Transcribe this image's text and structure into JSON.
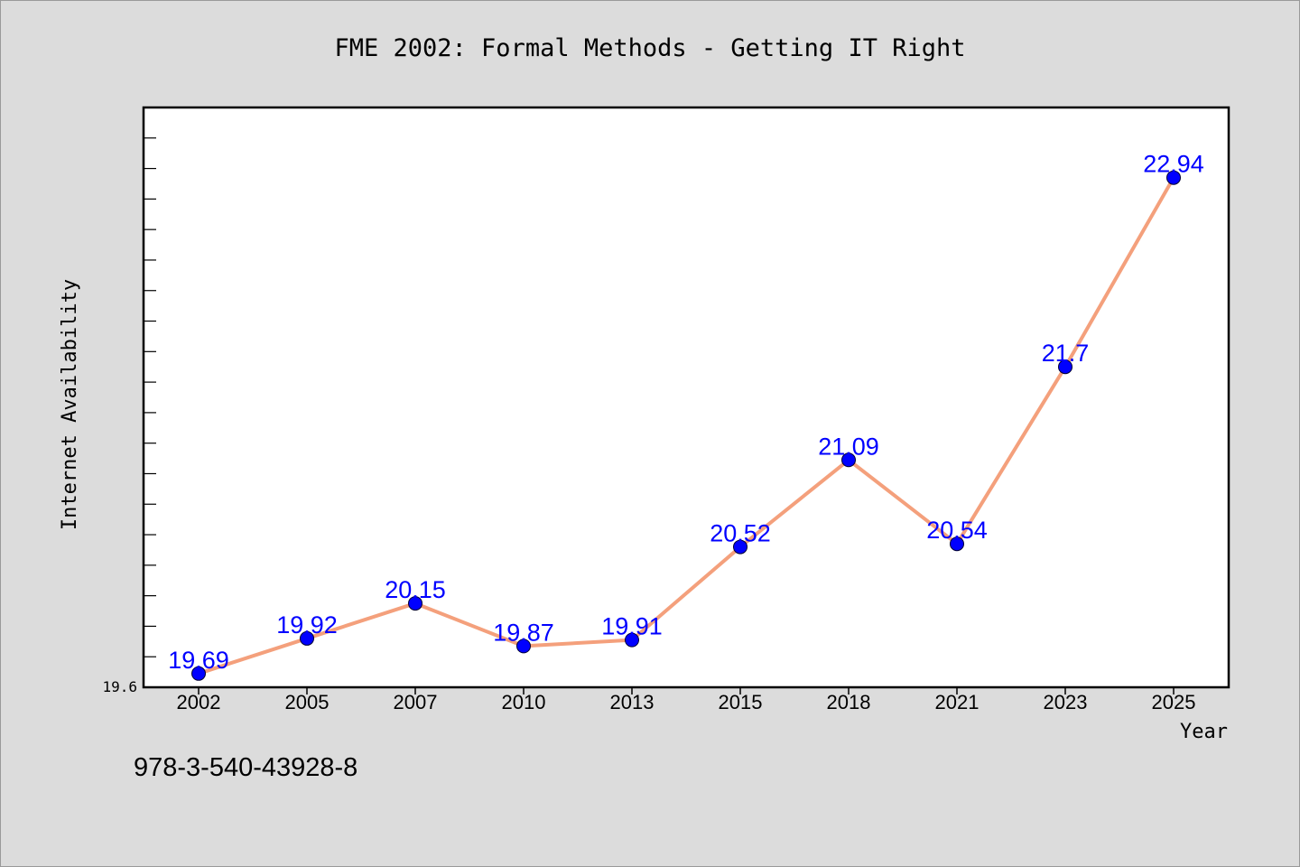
{
  "chart_data": {
    "type": "line",
    "title": "FME 2002: Formal Methods - Getting IT Right",
    "xlabel": "Year",
    "ylabel": "Internet Availability",
    "categories": [
      "2002",
      "2005",
      "2007",
      "2010",
      "2013",
      "2015",
      "2018",
      "2021",
      "2023",
      "2025"
    ],
    "series": [
      {
        "values": [
          19.69,
          19.92,
          20.15,
          19.87,
          19.91,
          20.52,
          21.09,
          20.54,
          21.7,
          22.94
        ]
      }
    ],
    "data_labels": [
      "19.69",
      "19.92",
      "20.15",
      "19.87",
      "19.91",
      "20.52",
      "21.09",
      "20.54",
      "21.7",
      "22.94"
    ],
    "y_tick_labels": [
      "19.6"
    ],
    "ylim": [
      19.6,
      23.4
    ],
    "grid": false,
    "legend": "none",
    "colors": {
      "line": "#f4a07c",
      "marker": "#0000ff",
      "labels": "#0000ff",
      "background": "#dcdcdc",
      "plot_background": "#ffffff"
    }
  },
  "footer": {
    "isbn": "978-3-540-43928-8"
  }
}
